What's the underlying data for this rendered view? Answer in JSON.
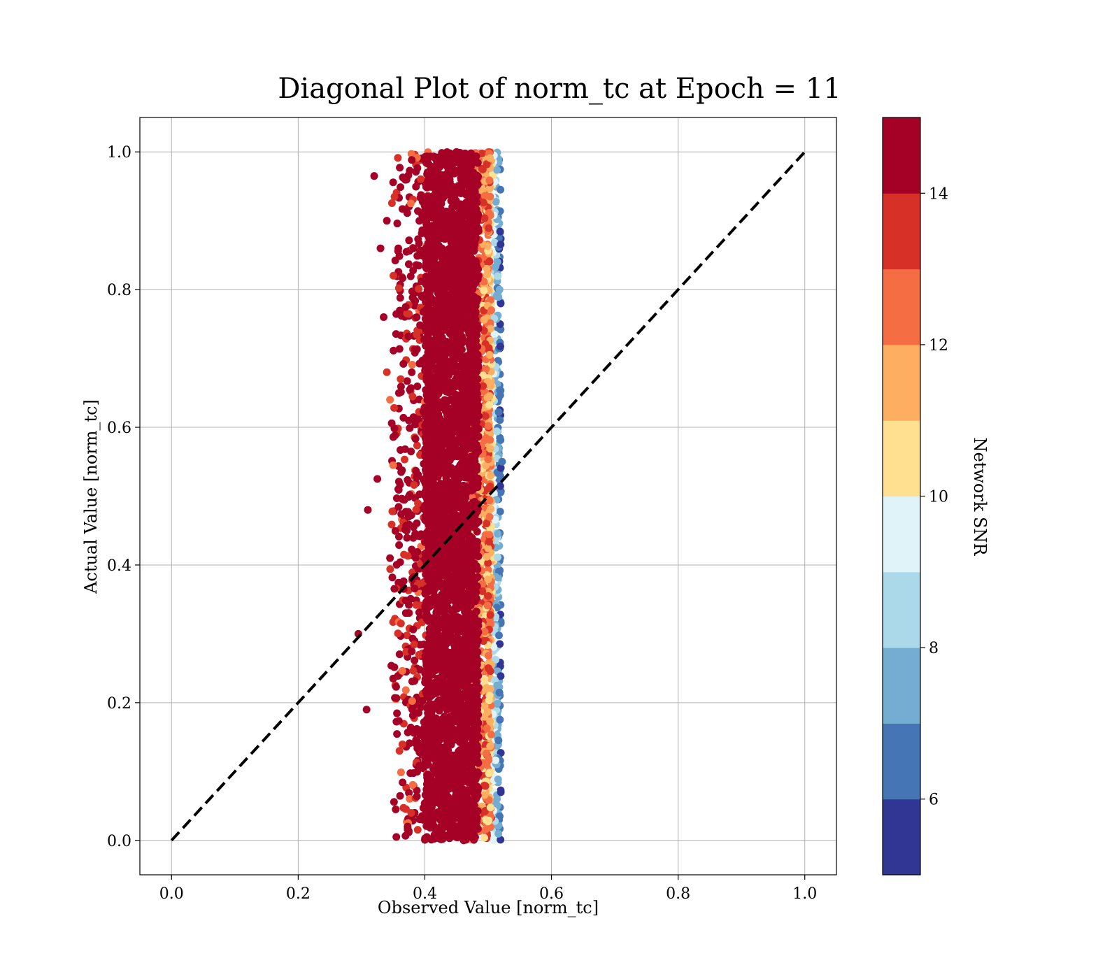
{
  "chart_data": {
    "type": "scatter",
    "title": "Diagonal Plot of norm_tc at Epoch = 11",
    "xlabel": "Observed Value [norm_tc]",
    "ylabel": "Actual Value [norm_tc]",
    "xlim": [
      -0.05,
      1.05
    ],
    "ylim": [
      -0.05,
      1.05
    ],
    "x_ticks": [
      "0.0",
      "0.2",
      "0.4",
      "0.6",
      "0.8",
      "1.0"
    ],
    "y_ticks": [
      "0.0",
      "0.2",
      "0.4",
      "0.6",
      "0.8",
      "1.0"
    ],
    "grid": true,
    "reference_line": {
      "style": "dashed",
      "color": "#000000",
      "from": [
        0,
        0
      ],
      "to": [
        1,
        1
      ]
    },
    "point_cloud": {
      "x_core_range": [
        0.4,
        0.52
      ],
      "x_outlier_min": 0.3,
      "y_range": [
        0.0,
        1.0
      ],
      "dominant_color": "#a50026"
    },
    "sample_points": [
      {
        "x": 0.32,
        "y": 0.965,
        "snr": 15
      },
      {
        "x": 0.31,
        "y": 0.48,
        "snr": 15
      },
      {
        "x": 0.295,
        "y": 0.3,
        "snr": 15
      },
      {
        "x": 0.308,
        "y": 0.19,
        "snr": 15
      },
      {
        "x": 0.325,
        "y": 0.525,
        "snr": 15
      },
      {
        "x": 0.33,
        "y": 0.86,
        "snr": 15
      },
      {
        "x": 0.335,
        "y": 0.76,
        "snr": 15
      },
      {
        "x": 0.34,
        "y": 0.68,
        "snr": 13.5
      },
      {
        "x": 0.345,
        "y": 0.41,
        "snr": 15
      },
      {
        "x": 0.35,
        "y": 0.545,
        "snr": 12.5
      },
      {
        "x": 0.35,
        "y": 0.235,
        "snr": 15
      },
      {
        "x": 0.355,
        "y": 0.005,
        "snr": 15
      },
      {
        "x": 0.36,
        "y": 0.13,
        "snr": 13.5
      },
      {
        "x": 0.34,
        "y": 0.9,
        "snr": 15
      },
      {
        "x": 0.345,
        "y": 0.64,
        "snr": 12.5
      },
      {
        "x": 0.522,
        "y": 0.55,
        "snr": 6
      },
      {
        "x": 0.52,
        "y": 0.07,
        "snr": 5.5
      },
      {
        "x": 0.518,
        "y": 0.8,
        "snr": 7
      },
      {
        "x": 0.5,
        "y": 0.355,
        "snr": 13.5
      },
      {
        "x": 0.505,
        "y": 0.77,
        "snr": 12
      }
    ],
    "colorbar": {
      "label": "Network SNR",
      "range": [
        5,
        15
      ],
      "ticks": [
        "6",
        "8",
        "10",
        "12",
        "14"
      ],
      "colors": [
        "#313695",
        "#4575b4",
        "#74add1",
        "#abd9e9",
        "#e0f3f8",
        "#fee090",
        "#fdae61",
        "#f46d43",
        "#d73027",
        "#a50026"
      ]
    }
  }
}
